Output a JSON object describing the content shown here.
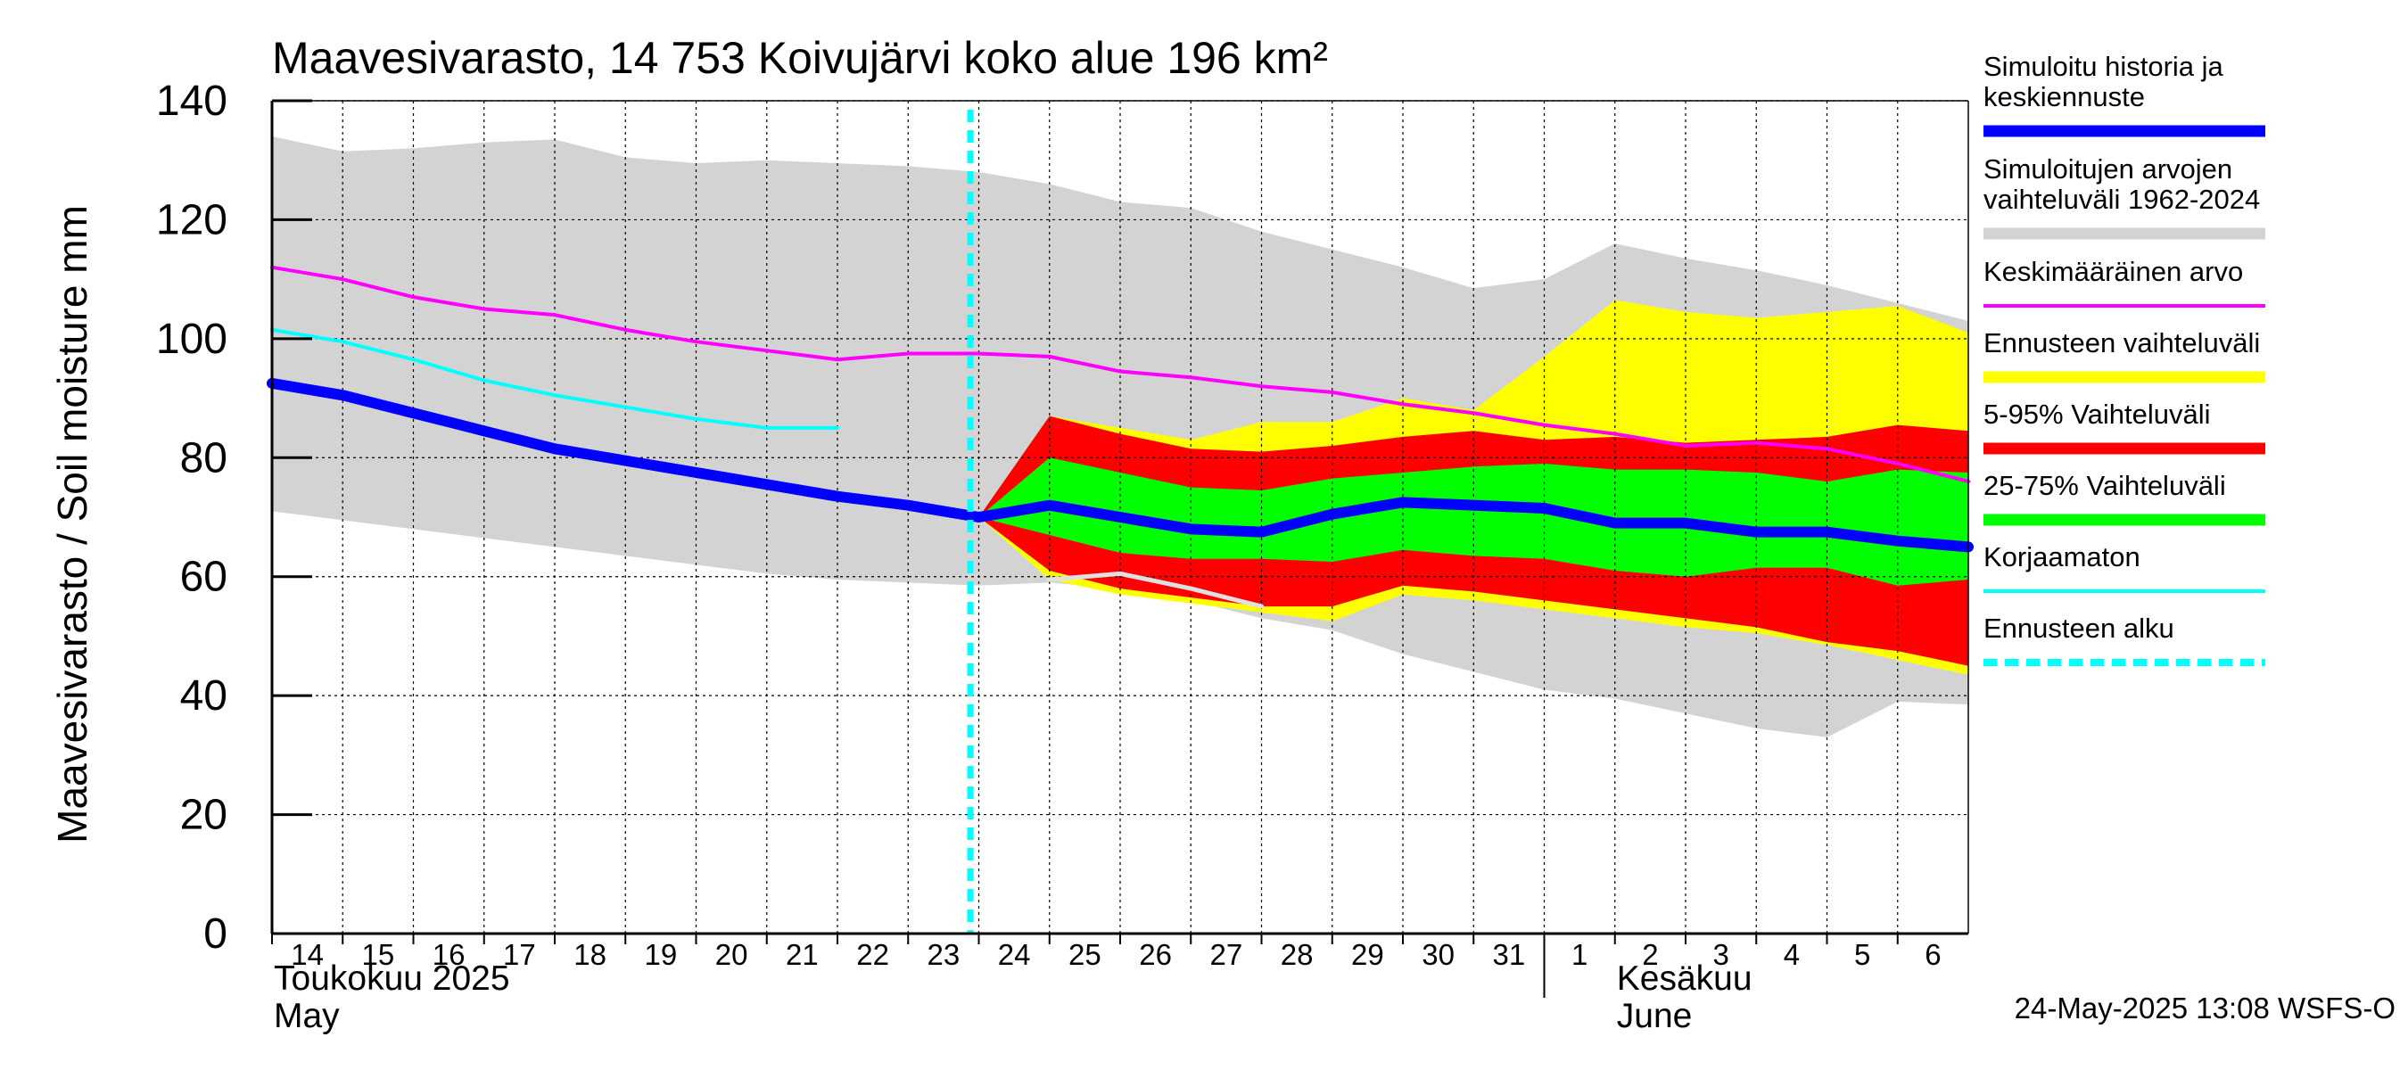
{
  "chart_data": {
    "type": "area",
    "title": "Maavesivarasto, 14 753 Koivujärvi koko alue 196 km²",
    "ylabel": "Maavesivarasto / Soil moisture   mm",
    "ylim": [
      0,
      140
    ],
    "y_ticks": [
      0,
      20,
      40,
      60,
      80,
      100,
      120,
      140
    ],
    "x_days": [
      "2025-05-14",
      "2025-05-15",
      "2025-05-16",
      "2025-05-17",
      "2025-05-18",
      "2025-05-19",
      "2025-05-20",
      "2025-05-21",
      "2025-05-22",
      "2025-05-23",
      "2025-05-24",
      "2025-05-25",
      "2025-05-26",
      "2025-05-27",
      "2025-05-28",
      "2025-05-29",
      "2025-05-30",
      "2025-05-31",
      "2025-06-01",
      "2025-06-02",
      "2025-06-03",
      "2025-06-04",
      "2025-06-05",
      "2025-06-06"
    ],
    "x_tick_labels": [
      "14",
      "15",
      "16",
      "17",
      "18",
      "19",
      "20",
      "21",
      "22",
      "23",
      "24",
      "25",
      "26",
      "27",
      "28",
      "29",
      "30",
      "31",
      "1",
      "2",
      "3",
      "4",
      "5",
      "6"
    ],
    "month_labels": [
      {
        "line1": "Toukokuu  2025",
        "line2": "May",
        "start": "2025-05-14"
      },
      {
        "line1": "Kesäkuu",
        "line2": "June",
        "start": "2025-06-02"
      }
    ],
    "month_separator": "2025-06-01",
    "forecast_start": "2025-05-24",
    "grid": true,
    "legend_position": "right",
    "series": [
      {
        "name": "Simuloitujen arvojen vaihteluväli 1962-2024",
        "kind": "band",
        "color": "#d3d3d3",
        "x": [
          "2025-05-14",
          "2025-05-15",
          "2025-05-16",
          "2025-05-17",
          "2025-05-18",
          "2025-05-19",
          "2025-05-20",
          "2025-05-21",
          "2025-05-22",
          "2025-05-23",
          "2025-05-24",
          "2025-05-25",
          "2025-05-26",
          "2025-05-27",
          "2025-05-28",
          "2025-05-29",
          "2025-05-30",
          "2025-05-31",
          "2025-06-01",
          "2025-06-02",
          "2025-06-03",
          "2025-06-04",
          "2025-06-05",
          "2025-06-06",
          "2025-06-07"
        ],
        "upper": [
          134,
          131.5,
          132,
          133,
          133.5,
          130.5,
          129.5,
          130,
          129.5,
          129,
          128,
          126,
          123,
          122,
          118,
          115,
          112,
          108.5,
          110,
          116,
          113.5,
          111.5,
          109,
          106,
          103
        ],
        "lower": [
          71,
          69.5,
          68,
          66.5,
          65,
          63.5,
          62,
          60.5,
          59.5,
          59,
          58.5,
          59,
          58,
          56,
          53,
          51,
          47,
          44,
          41,
          39.5,
          37,
          34.5,
          33,
          39,
          38.5
        ]
      },
      {
        "name": "Ennusteen vaihteluväli",
        "kind": "band",
        "color": "#ffff00",
        "x": [
          "2025-05-24",
          "2025-05-25",
          "2025-05-26",
          "2025-05-27",
          "2025-05-28",
          "2025-05-29",
          "2025-05-30",
          "2025-05-31",
          "2025-06-01",
          "2025-06-02",
          "2025-06-03",
          "2025-06-04",
          "2025-06-05",
          "2025-06-06",
          "2025-06-07"
        ],
        "upper": [
          70,
          87,
          85,
          83,
          86,
          86,
          90,
          88,
          97,
          106.5,
          104.5,
          103.5,
          104.5,
          105.5,
          101
        ],
        "lower": [
          70,
          59.5,
          57,
          55.5,
          54,
          52.5,
          57,
          56,
          54.5,
          53,
          51.5,
          50.5,
          48.5,
          46,
          43.5
        ]
      },
      {
        "name": "5-95% Vaihteluväli",
        "kind": "band",
        "color": "#ff0000",
        "x": [
          "2025-05-24",
          "2025-05-25",
          "2025-05-26",
          "2025-05-27",
          "2025-05-28",
          "2025-05-29",
          "2025-05-30",
          "2025-05-31",
          "2025-06-01",
          "2025-06-02",
          "2025-06-03",
          "2025-06-04",
          "2025-06-05",
          "2025-06-06",
          "2025-06-07"
        ],
        "upper": [
          70,
          87,
          84,
          81.5,
          81,
          82,
          83.5,
          84.5,
          83,
          83.5,
          82.5,
          83,
          83.5,
          85.5,
          84.5
        ],
        "lower": [
          70,
          61,
          58,
          56.5,
          55,
          55,
          58.5,
          57.5,
          56,
          54.5,
          53,
          51.5,
          49,
          47.5,
          45
        ]
      },
      {
        "name": "25-75% Vaihteluväli",
        "kind": "band",
        "color": "#00ff00",
        "x": [
          "2025-05-24",
          "2025-05-25",
          "2025-05-26",
          "2025-05-27",
          "2025-05-28",
          "2025-05-29",
          "2025-05-30",
          "2025-05-31",
          "2025-06-01",
          "2025-06-02",
          "2025-06-03",
          "2025-06-04",
          "2025-06-05",
          "2025-06-06",
          "2025-06-07"
        ],
        "upper": [
          70,
          80,
          77.5,
          75,
          74.5,
          76.5,
          77.5,
          78.5,
          79,
          78,
          78,
          77.5,
          76,
          78,
          77.5
        ],
        "lower": [
          70,
          67,
          64,
          63,
          63,
          62.5,
          64.5,
          63.5,
          63,
          61,
          60,
          61.5,
          61.5,
          58.5,
          59.5
        ]
      },
      {
        "name": "",
        "kind": "line",
        "color": "#e0e0e0",
        "width": 5,
        "x": [
          "2025-05-25",
          "2025-05-26",
          "2025-05-27",
          "2025-05-28"
        ],
        "values": [
          59.5,
          60.5,
          58,
          55
        ]
      },
      {
        "name": "Keskimääräinen arvo",
        "kind": "line",
        "color": "#ff00ff",
        "width": 4,
        "x": [
          "2025-05-14",
          "2025-05-15",
          "2025-05-16",
          "2025-05-17",
          "2025-05-18",
          "2025-05-19",
          "2025-05-20",
          "2025-05-21",
          "2025-05-22",
          "2025-05-23",
          "2025-05-24",
          "2025-05-25",
          "2025-05-26",
          "2025-05-27",
          "2025-05-28",
          "2025-05-29",
          "2025-05-30",
          "2025-05-31",
          "2025-06-01",
          "2025-06-02",
          "2025-06-03",
          "2025-06-04",
          "2025-06-05",
          "2025-06-06",
          "2025-06-07"
        ],
        "values": [
          112,
          110,
          107,
          105,
          104,
          101.5,
          99.5,
          98,
          96.5,
          97.5,
          97.5,
          97,
          94.5,
          93.5,
          92,
          91,
          89,
          87.5,
          85.5,
          84,
          82,
          82.5,
          81.5,
          79,
          76
        ]
      },
      {
        "name": "Korjaamaton",
        "kind": "line",
        "color": "#00ffff",
        "width": 4,
        "x": [
          "2025-05-14",
          "2025-05-15",
          "2025-05-16",
          "2025-05-17",
          "2025-05-18",
          "2025-05-19",
          "2025-05-20",
          "2025-05-21",
          "2025-05-22"
        ],
        "values": [
          101.5,
          99.5,
          96.5,
          93,
          90.5,
          88.5,
          86.5,
          85,
          85
        ]
      },
      {
        "name": "Simuloitu historia ja keskiennuste",
        "kind": "line",
        "color": "#0000ff",
        "width": 12,
        "x": [
          "2025-05-14",
          "2025-05-15",
          "2025-05-16",
          "2025-05-17",
          "2025-05-18",
          "2025-05-19",
          "2025-05-20",
          "2025-05-21",
          "2025-05-22",
          "2025-05-23",
          "2025-05-24",
          "2025-05-25",
          "2025-05-26",
          "2025-05-27",
          "2025-05-28",
          "2025-05-29",
          "2025-05-30",
          "2025-05-31",
          "2025-06-01",
          "2025-06-02",
          "2025-06-03",
          "2025-06-04",
          "2025-06-05",
          "2025-06-06",
          "2025-06-07"
        ],
        "values": [
          92.5,
          90.5,
          87.5,
          84.5,
          81.5,
          79.5,
          77.5,
          75.5,
          73.5,
          72,
          70,
          72,
          70,
          68,
          67.5,
          70.5,
          72.5,
          72,
          71.5,
          69,
          69,
          67.5,
          67.5,
          66,
          65
        ]
      }
    ],
    "legend": [
      {
        "label": "Simuloitu historia ja keskiennuste",
        "color": "#0000ff",
        "style": "thick"
      },
      {
        "label": "Simuloitujen arvojen vaihteluväli 1962-2024",
        "color": "#d3d3d3",
        "style": "thick"
      },
      {
        "label": "Keskimääräinen arvo",
        "color": "#ff00ff",
        "style": "thin"
      },
      {
        "label": "Ennusteen vaihteluväli",
        "color": "#ffff00",
        "style": "thick"
      },
      {
        "label": "5-95% Vaihteluväli",
        "color": "#ff0000",
        "style": "thick"
      },
      {
        "label": "25-75% Vaihteluväli",
        "color": "#00ff00",
        "style": "thick"
      },
      {
        "label": "Korjaamaton",
        "color": "#00ffff",
        "style": "thin"
      },
      {
        "label": "Ennusteen alku",
        "color": "#00ffff",
        "style": "dashed"
      }
    ],
    "footer": "24-May-2025 13:08 WSFS-O"
  }
}
